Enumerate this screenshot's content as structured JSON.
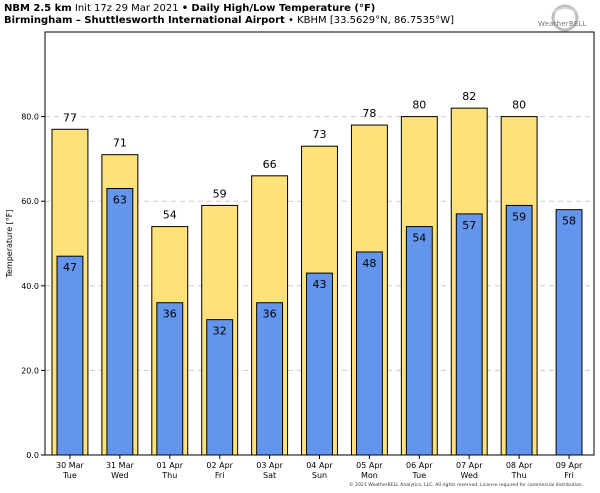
{
  "header": {
    "model": "NBM 2.5 km",
    "init": "Init 17z 29 Mar 2021",
    "bullet": "•",
    "product": "Daily High/Low Temperature (°F)",
    "station": "Birmingham – Shuttlesworth International Airport",
    "station_info": "• KBHM [33.5629°N, 86.7535°W]"
  },
  "logo": {
    "text": "WeatherBELL"
  },
  "copyright": "© 2021 WeatherBELL Analytics, LLC. All rights reserved. License required for commercial distribution.",
  "colors": {
    "high": "#ffe17a",
    "low": "#6495ed",
    "grid": "#cccccc"
  },
  "chart_data": {
    "type": "bar",
    "ylabel": "Temperature [°F]",
    "ylim": [
      0,
      100
    ],
    "yticks": [
      "0.0",
      "20.0",
      "40.0",
      "60.0",
      "80.0"
    ],
    "grid": true,
    "categories": [
      {
        "date": "30 Mar",
        "day": "Tue"
      },
      {
        "date": "31 Mar",
        "day": "Wed"
      },
      {
        "date": "01 Apr",
        "day": "Thu"
      },
      {
        "date": "02 Apr",
        "day": "Fri"
      },
      {
        "date": "03 Apr",
        "day": "Sat"
      },
      {
        "date": "04 Apr",
        "day": "Sun"
      },
      {
        "date": "05 Apr",
        "day": "Mon"
      },
      {
        "date": "06 Apr",
        "day": "Tue"
      },
      {
        "date": "07 Apr",
        "day": "Wed"
      },
      {
        "date": "08 Apr",
        "day": "Thu"
      },
      {
        "date": "09 Apr",
        "day": "Fri"
      }
    ],
    "series": [
      {
        "key": "high",
        "values": [
          77,
          71,
          54,
          59,
          66,
          73,
          78,
          80,
          82,
          80,
          null
        ]
      },
      {
        "key": "low",
        "values": [
          47,
          63,
          36,
          32,
          36,
          43,
          48,
          54,
          57,
          59,
          58
        ]
      }
    ]
  }
}
